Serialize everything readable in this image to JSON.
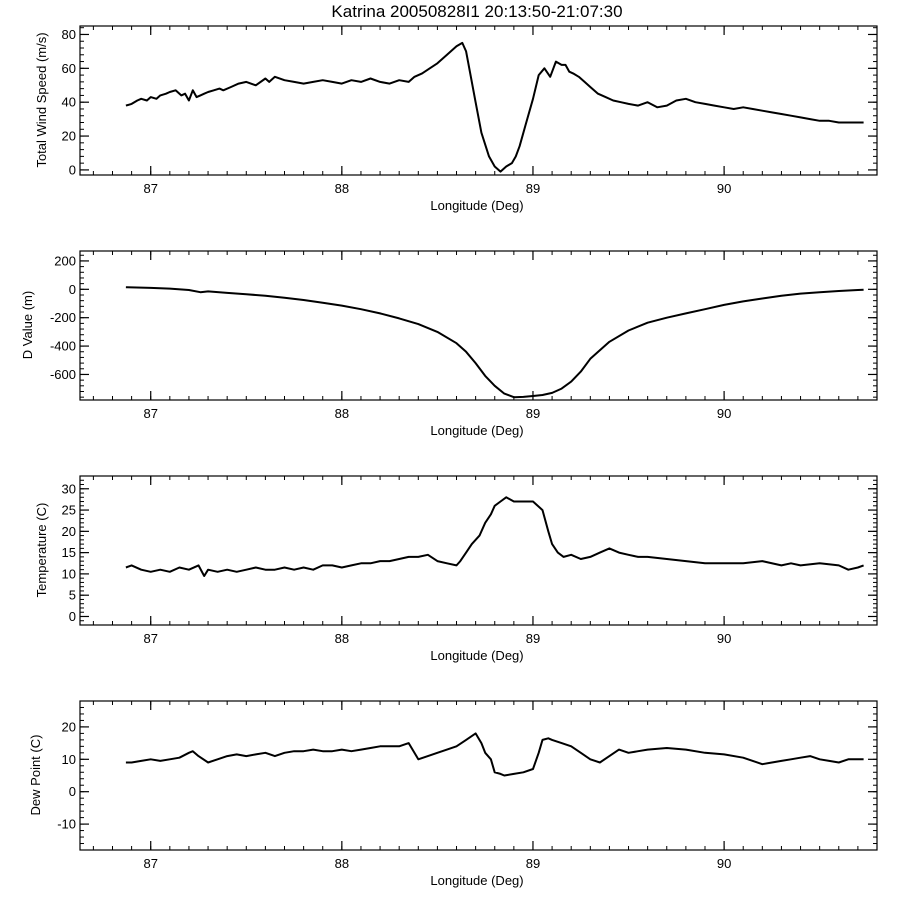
{
  "title": "Katrina 20050828I1 20:13:50-21:07:30",
  "chart_data": [
    {
      "type": "line",
      "xlabel": "Longitude (Deg)",
      "ylabel": "Total Wind Speed (m/s)",
      "xlim": [
        86.63,
        90.8
      ],
      "ylim": [
        -3,
        85
      ],
      "x_ticks": [
        87,
        88,
        89,
        90
      ],
      "y_ticks": [
        0,
        20,
        40,
        60,
        80
      ],
      "series": [
        {
          "x": [
            86.87,
            86.9,
            86.93,
            86.95,
            86.98,
            87.0,
            87.03,
            87.05,
            87.08,
            87.1,
            87.13,
            87.16,
            87.18,
            87.2,
            87.22,
            87.24,
            87.26,
            87.28,
            87.3,
            87.33,
            87.36,
            87.38,
            87.42,
            87.46,
            87.5,
            87.55,
            87.6,
            87.62,
            87.65,
            87.7,
            87.75,
            87.8,
            87.85,
            87.9,
            87.95,
            88.0,
            88.05,
            88.1,
            88.15,
            88.2,
            88.25,
            88.3,
            88.35,
            88.38,
            88.42,
            88.46,
            88.5,
            88.55,
            88.6,
            88.63,
            88.65,
            88.67,
            88.7,
            88.73,
            88.77,
            88.8,
            88.83,
            88.86,
            88.89,
            88.91,
            88.93,
            88.96,
            89.0,
            89.03,
            89.06,
            89.09,
            89.12,
            89.15,
            89.17,
            89.19,
            89.21,
            89.24,
            89.27,
            89.3,
            89.34,
            89.38,
            89.42,
            89.46,
            89.5,
            89.55,
            89.6,
            89.65,
            89.7,
            89.75,
            89.8,
            89.85,
            89.9,
            89.95,
            90.0,
            90.05,
            90.1,
            90.15,
            90.2,
            90.25,
            90.3,
            90.35,
            90.4,
            90.45,
            90.5,
            90.55,
            90.6,
            90.65,
            90.7,
            90.73
          ],
          "y": [
            38,
            39,
            41,
            42,
            41,
            43,
            42,
            44,
            45,
            46,
            47,
            44,
            45,
            41,
            47,
            43,
            44,
            45,
            46,
            47,
            48,
            47,
            49,
            51,
            52,
            50,
            54,
            52,
            55,
            53,
            52,
            51,
            52,
            53,
            52,
            51,
            53,
            52,
            54,
            52,
            51,
            53,
            52,
            55,
            57,
            60,
            63,
            68,
            73,
            75,
            70,
            58,
            40,
            22,
            8,
            2,
            -1,
            2,
            4,
            8,
            14,
            26,
            42,
            56,
            60,
            55,
            64,
            62,
            62,
            58,
            57,
            55,
            52,
            49,
            45,
            43,
            41,
            40,
            39,
            38,
            40,
            37,
            38,
            41,
            42,
            40,
            39,
            38,
            37,
            36,
            37,
            36,
            35,
            34,
            33,
            32,
            31,
            30,
            29,
            29,
            28,
            28,
            28,
            28
          ]
        }
      ]
    },
    {
      "type": "line",
      "xlabel": "Longitude (Deg)",
      "ylabel": "D Value (m)",
      "xlim": [
        86.63,
        90.8
      ],
      "ylim": [
        -780,
        270
      ],
      "x_ticks": [
        87,
        88,
        89,
        90
      ],
      "y_ticks": [
        -600,
        -400,
        -200,
        0,
        200
      ],
      "series": [
        {
          "x": [
            86.87,
            87.0,
            87.1,
            87.2,
            87.26,
            87.3,
            87.4,
            87.5,
            87.6,
            87.7,
            87.8,
            87.9,
            88.0,
            88.1,
            88.2,
            88.3,
            88.4,
            88.5,
            88.6,
            88.65,
            88.7,
            88.75,
            88.8,
            88.85,
            88.9,
            88.95,
            89.0,
            89.05,
            89.1,
            89.15,
            89.2,
            89.25,
            89.3,
            89.4,
            89.5,
            89.6,
            89.7,
            89.8,
            89.9,
            90.0,
            90.1,
            90.2,
            90.3,
            90.4,
            90.5,
            90.6,
            90.7,
            90.73
          ],
          "y": [
            15,
            10,
            5,
            -5,
            -20,
            -15,
            -25,
            -35,
            -45,
            -60,
            -75,
            -95,
            -115,
            -140,
            -170,
            -205,
            -245,
            -300,
            -380,
            -440,
            -520,
            -610,
            -680,
            -735,
            -760,
            -758,
            -752,
            -745,
            -730,
            -700,
            -650,
            -580,
            -490,
            -370,
            -290,
            -235,
            -200,
            -170,
            -140,
            -110,
            -85,
            -65,
            -45,
            -30,
            -20,
            -12,
            -5,
            -3
          ]
        }
      ]
    },
    {
      "type": "line",
      "xlabel": "Longitude (Deg)",
      "ylabel": "Temperature (C)",
      "xlim": [
        86.63,
        90.8
      ],
      "ylim": [
        -2,
        33
      ],
      "x_ticks": [
        87,
        88,
        89,
        90
      ],
      "y_ticks": [
        0,
        5,
        10,
        15,
        20,
        25,
        30
      ],
      "series": [
        {
          "x": [
            86.87,
            86.9,
            86.95,
            87.0,
            87.05,
            87.1,
            87.15,
            87.2,
            87.25,
            87.28,
            87.3,
            87.35,
            87.4,
            87.45,
            87.5,
            87.55,
            87.6,
            87.65,
            87.7,
            87.75,
            87.8,
            87.85,
            87.9,
            87.95,
            88.0,
            88.05,
            88.1,
            88.15,
            88.2,
            88.25,
            88.3,
            88.35,
            88.4,
            88.45,
            88.5,
            88.55,
            88.6,
            88.62,
            88.65,
            88.68,
            88.72,
            88.75,
            88.78,
            88.8,
            88.83,
            88.86,
            88.9,
            88.95,
            89.0,
            89.05,
            89.08,
            89.1,
            89.13,
            89.16,
            89.2,
            89.25,
            89.3,
            89.35,
            89.4,
            89.45,
            89.5,
            89.55,
            89.6,
            89.7,
            89.8,
            89.9,
            90.0,
            90.1,
            90.2,
            90.3,
            90.35,
            90.4,
            90.5,
            90.6,
            90.65,
            90.7,
            90.73
          ],
          "y": [
            11.5,
            12,
            11,
            10.5,
            11,
            10.5,
            11.5,
            11,
            12,
            9.5,
            11,
            10.5,
            11,
            10.5,
            11,
            11.5,
            11,
            11,
            11.5,
            11,
            11.5,
            11,
            12,
            12,
            11.5,
            12,
            12.5,
            12.5,
            13,
            13,
            13.5,
            14,
            14,
            14.5,
            13,
            12.5,
            12,
            13,
            15,
            17,
            19,
            22,
            24,
            26,
            27,
            28,
            27,
            27,
            27,
            25,
            20,
            17,
            15,
            14,
            14.5,
            13.5,
            14,
            15,
            16,
            15,
            14.5,
            14,
            14,
            13.5,
            13,
            12.5,
            12.5,
            12.5,
            13,
            12,
            12.5,
            12,
            12.5,
            12,
            11,
            11.5,
            12
          ]
        }
      ]
    },
    {
      "type": "line",
      "xlabel": "Longitude (Deg)",
      "ylabel": "Dew Point (C)",
      "xlim": [
        86.63,
        90.8
      ],
      "ylim": [
        -18,
        28
      ],
      "x_ticks": [
        87,
        88,
        89,
        90
      ],
      "y_ticks": [
        -10,
        0,
        10,
        20
      ],
      "series": [
        {
          "x": [
            86.87,
            86.9,
            86.95,
            87.0,
            87.05,
            87.1,
            87.15,
            87.2,
            87.22,
            87.25,
            87.3,
            87.35,
            87.4,
            87.45,
            87.5,
            87.55,
            87.6,
            87.65,
            87.7,
            87.75,
            87.8,
            87.85,
            87.9,
            87.95,
            88.0,
            88.05,
            88.1,
            88.15,
            88.2,
            88.25,
            88.3,
            88.35,
            88.4,
            88.45,
            88.5,
            88.55,
            88.6,
            88.65,
            88.7,
            88.73,
            88.75,
            88.78,
            88.8,
            88.83,
            88.85,
            88.9,
            88.95,
            89.0,
            89.03,
            89.05,
            89.08,
            89.1,
            89.15,
            89.2,
            89.25,
            89.3,
            89.35,
            89.4,
            89.45,
            89.5,
            89.55,
            89.6,
            89.7,
            89.8,
            89.9,
            90.0,
            90.1,
            90.15,
            90.2,
            90.25,
            90.3,
            90.35,
            90.4,
            90.45,
            90.5,
            90.55,
            90.6,
            90.65,
            90.7,
            90.73
          ],
          "y": [
            9,
            9,
            9.5,
            10,
            9.5,
            10,
            10.5,
            12,
            12.5,
            11,
            9,
            10,
            11,
            11.5,
            11,
            11.5,
            12,
            11,
            12,
            12.5,
            12.5,
            13,
            12.5,
            12.5,
            13,
            12.5,
            13,
            13.5,
            14,
            14,
            14,
            15,
            10,
            11,
            12,
            13,
            14,
            16,
            18,
            15,
            12,
            10,
            6,
            5.5,
            5,
            5.5,
            6,
            7,
            12,
            16,
            16.5,
            16,
            15,
            14,
            12,
            10,
            9,
            11,
            13,
            12,
            12.5,
            13,
            13.5,
            13,
            12,
            11.5,
            10.5,
            9.5,
            8.5,
            9,
            9.5,
            10,
            10.5,
            11,
            10,
            9.5,
            9,
            10,
            10,
            10
          ]
        }
      ]
    }
  ]
}
